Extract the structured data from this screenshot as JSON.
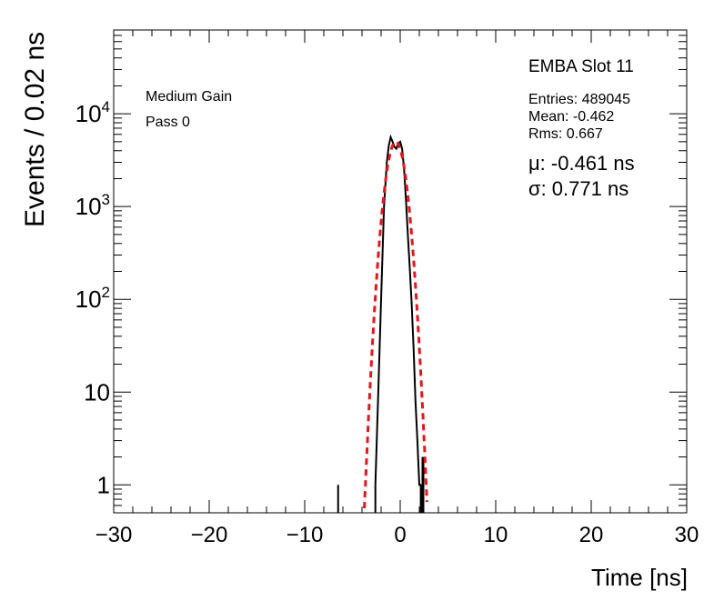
{
  "chart_data": {
    "type": "histogram",
    "xlabel": "Time [ns]",
    "ylabel": "Events / 0.02 ns",
    "xlim": [
      -30,
      30
    ],
    "ylim": [
      0.5,
      80000
    ],
    "ylog": true,
    "x_ticks": [
      {
        "value": -30,
        "label": "−30"
      },
      {
        "value": -20,
        "label": "−20"
      },
      {
        "value": -10,
        "label": "−10"
      },
      {
        "value": 0,
        "label": "0"
      },
      {
        "value": 10,
        "label": "10"
      },
      {
        "value": 20,
        "label": "20"
      },
      {
        "value": 30,
        "label": "30"
      }
    ],
    "y_ticks": [
      {
        "value": 1,
        "label": "1"
      },
      {
        "value": 10,
        "label": "10"
      },
      {
        "value": 100,
        "base": "10",
        "exp": "2"
      },
      {
        "value": 1000,
        "base": "10",
        "exp": "3"
      },
      {
        "value": 10000,
        "base": "10",
        "exp": "4"
      }
    ],
    "title": "EMBA Slot 11",
    "stats": {
      "entries": "Entries: 489045",
      "mean": "Mean: -0.462",
      "rms": "Rms: 0.667"
    },
    "fit": {
      "function": "gaussian",
      "color": "#e8141a",
      "mu": -0.461,
      "sigma": 0.771,
      "mu_text": "μ: -0.461 ns",
      "sigma_text": "σ: 0.771 ns",
      "x_range": [
        -4,
        2.9
      ],
      "amplitude": 5000
    },
    "legend_lines": [
      "Medium Gain",
      "Pass 0"
    ],
    "series": [
      {
        "name": "data",
        "color": "#000000",
        "x": [
          -6.5,
          -2.6,
          -2.3,
          -2.0,
          -1.7,
          -1.4,
          -1.2,
          -1.0,
          -0.8,
          -0.6,
          -0.4,
          -0.2,
          0.0,
          0.2,
          0.4,
          0.6,
          0.8,
          1.0,
          1.2,
          1.4,
          1.6,
          1.8,
          2.0,
          2.2
        ],
        "y": [
          1,
          1,
          10,
          100,
          1000,
          3000,
          4500,
          5600,
          5000,
          4400,
          4200,
          4800,
          5000,
          4200,
          2600,
          1200,
          500,
          220,
          90,
          30,
          8,
          3,
          1,
          1
        ]
      }
    ]
  }
}
